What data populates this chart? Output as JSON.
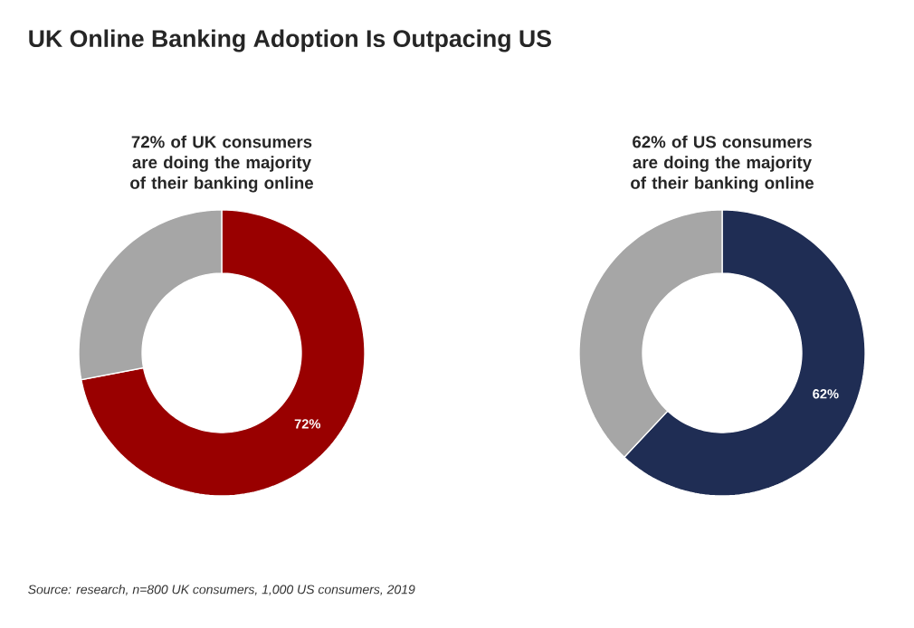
{
  "chart_data": [
    {
      "type": "donut",
      "title": "UK Online Banking Adoption Is Outpacing US",
      "subtitle": "72% of UK consumers are doing the majority of their banking online",
      "categories": [
        null,
        null
      ],
      "values": [
        72,
        28
      ],
      "colors": [
        "#990000",
        "#a6a6a6"
      ],
      "value_labels": [
        "72%",
        null
      ]
    },
    {
      "type": "donut",
      "subtitle": "62% of US consumers are doing the majority of their banking online",
      "categories": [
        null,
        null
      ],
      "values": [
        62,
        38
      ],
      "colors": [
        "#1f2d54",
        "#a6a6a6"
      ],
      "value_labels": [
        "62%",
        null
      ],
      "annotations": [
        "Source: research, n=800 UK consumers, 1,000 US consumers, 2019"
      ]
    }
  ]
}
